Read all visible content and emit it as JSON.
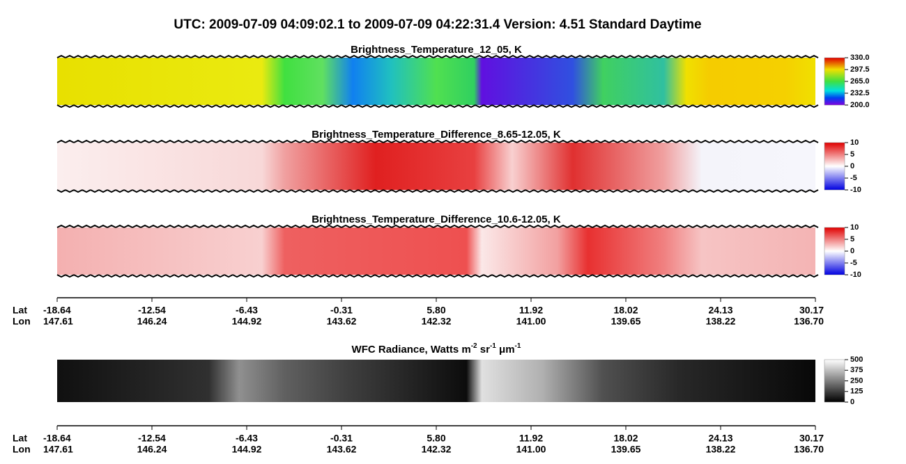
{
  "header": {
    "title": "UTC:  2009-07-09   04:09:02.1  to  2009-07-09   04:22:31.4    Version: 4.51  Standard Daytime"
  },
  "panels": [
    {
      "title": "Brightness_Temperature_12_05, K",
      "colorbar": [
        "330.0",
        "297.5",
        "265.0",
        "232.5",
        "200.0"
      ]
    },
    {
      "title": "Brightness_Temperature_Difference_8.65-12.05, K",
      "colorbar": [
        "10",
        "5",
        "0",
        "-5",
        "-10"
      ]
    },
    {
      "title": "Brightness_Temperature_Difference_10.6-12.05, K",
      "colorbar": [
        "10",
        "5",
        "0",
        "-5",
        "-10"
      ]
    },
    {
      "title_parts": [
        "WFC Radiance, Watts m",
        "-2",
        " sr",
        "-1",
        " μm",
        "-1"
      ],
      "colorbar": [
        "500",
        "375",
        "250",
        "125",
        "0"
      ]
    }
  ],
  "axis": {
    "lat_label": "Lat",
    "lon_label": "Lon",
    "lat": [
      "-18.64",
      "-12.54",
      "-6.43",
      "-0.31",
      "5.80",
      "11.92",
      "18.02",
      "24.13",
      "30.17"
    ],
    "lon": [
      "147.61",
      "146.24",
      "144.92",
      "143.62",
      "142.32",
      "141.00",
      "139.65",
      "138.22",
      "136.70"
    ]
  }
}
